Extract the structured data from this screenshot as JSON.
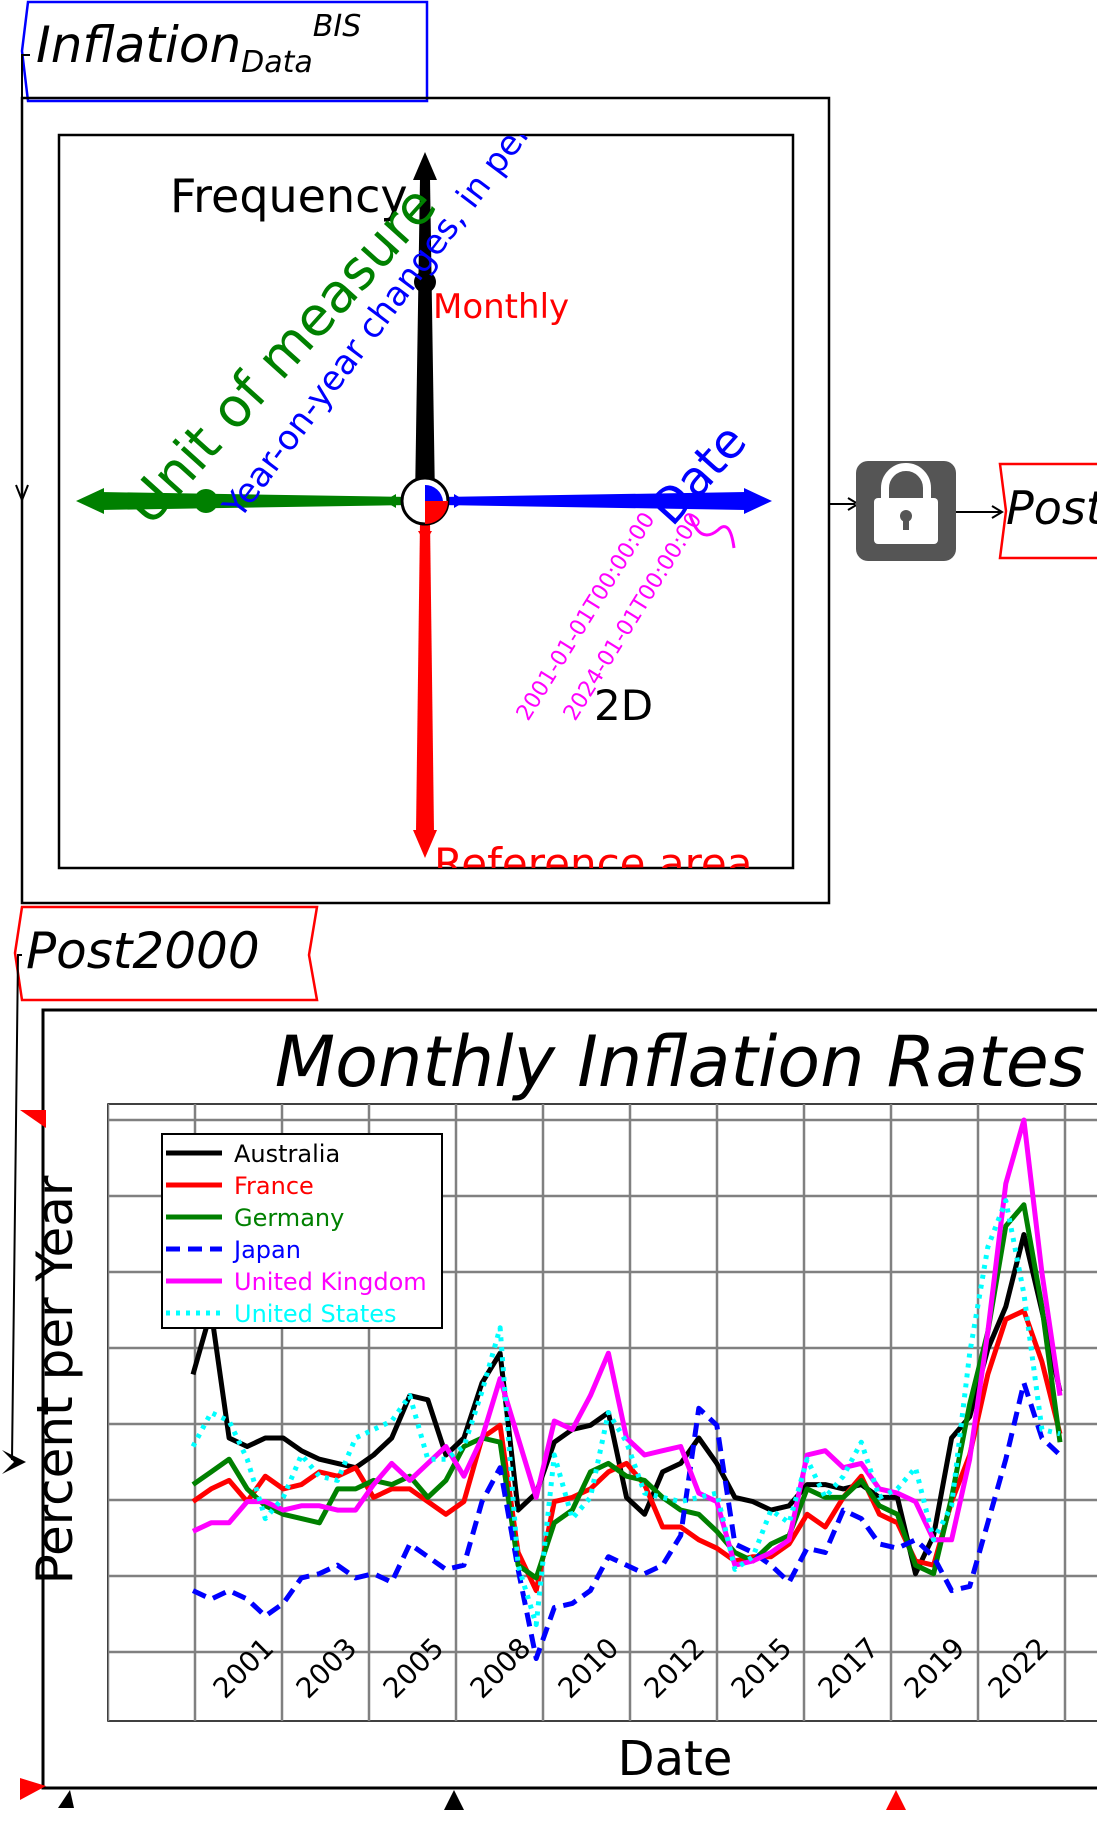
{
  "dataset_title": {
    "base": "Inflation",
    "sub": "Data",
    "sup": "BIS"
  },
  "dims": {
    "frequency": {
      "label": "Frequency",
      "value": "Monthly"
    },
    "unit_of_measure": {
      "label": "Unit of measure",
      "value": "Year-on-year changes, in per cent"
    },
    "date": {
      "label": "Date",
      "start": "2001-01-01T00:00:00",
      "end": "2024-01-01T00:00:00"
    },
    "reference_area": {
      "label": "Reference area"
    }
  },
  "dim_badge": "2D",
  "lock": {
    "icon": "lock-icon"
  },
  "output_tag_partial": "Post",
  "subset_tag": "Post2000",
  "colors": {
    "black": "#000000",
    "red": "#ff0000",
    "green": "#008000",
    "blue": "#0000ff",
    "magenta": "#ff00ff",
    "cyan": "#00ffff",
    "lock_bg": "#555555"
  },
  "chart_data": {
    "type": "line",
    "title": "Monthly Inflation Rates",
    "xlabel": "Date",
    "ylabel": "Percent per Year",
    "x_ticks": [
      "2001",
      "2003",
      "2005",
      "2008",
      "2010",
      "2012",
      "2015",
      "2017",
      "2019",
      "2022"
    ],
    "x_start": 2000.0,
    "x_end": 2024.0,
    "ylim": [
      -2,
      10.5
    ],
    "grid": true,
    "legend_position": "top-left",
    "series": [
      {
        "name": "Australia",
        "color": "#000000",
        "dash": "solid",
        "x": [
          2000.0,
          2000.5,
          2001.0,
          2001.5,
          2002.0,
          2002.5,
          2003.0,
          2003.5,
          2004.0,
          2004.5,
          2005.0,
          2005.5,
          2006.0,
          2006.5,
          2007.0,
          2007.5,
          2008.0,
          2008.5,
          2009.0,
          2009.5,
          2010.0,
          2010.5,
          2011.0,
          2011.5,
          2012.0,
          2012.5,
          2013.0,
          2013.5,
          2014.0,
          2014.5,
          2015.0,
          2015.5,
          2016.0,
          2016.5,
          2017.0,
          2017.5,
          2018.0,
          2018.5,
          2019.0,
          2019.5,
          2020.0,
          2020.5,
          2021.0,
          2021.5,
          2022.0,
          2022.5,
          2023.0,
          2023.5,
          2024.0
        ],
        "y": [
          4.5,
          6.0,
          3.0,
          2.8,
          3.0,
          3.0,
          2.7,
          2.5,
          2.4,
          2.3,
          2.6,
          3.0,
          4.0,
          3.9,
          2.6,
          3.0,
          4.3,
          5.0,
          1.3,
          1.7,
          2.9,
          3.2,
          3.3,
          3.6,
          1.6,
          1.2,
          2.2,
          2.4,
          3.0,
          2.4,
          1.6,
          1.5,
          1.3,
          1.4,
          1.9,
          1.9,
          1.8,
          1.9,
          1.6,
          1.6,
          -0.2,
          0.7,
          3.0,
          3.5,
          5.1,
          6.1,
          7.8,
          6.0,
          4.1
        ]
      },
      {
        "name": "France",
        "color": "#ff0000",
        "dash": "solid",
        "x": [
          2000.0,
          2000.5,
          2001.0,
          2001.5,
          2002.0,
          2002.5,
          2003.0,
          2003.5,
          2004.0,
          2004.5,
          2005.0,
          2005.5,
          2006.0,
          2006.5,
          2007.0,
          2007.5,
          2008.0,
          2008.5,
          2009.0,
          2009.5,
          2010.0,
          2010.5,
          2011.0,
          2011.5,
          2012.0,
          2012.5,
          2013.0,
          2013.5,
          2014.0,
          2014.5,
          2015.0,
          2015.5,
          2016.0,
          2016.5,
          2017.0,
          2017.5,
          2018.0,
          2018.5,
          2019.0,
          2019.5,
          2020.0,
          2020.5,
          2021.0,
          2021.5,
          2022.0,
          2022.5,
          2023.0,
          2023.5,
          2024.0
        ],
        "y": [
          1.5,
          1.8,
          2.0,
          1.5,
          2.1,
          1.8,
          1.9,
          2.2,
          2.1,
          2.3,
          1.6,
          1.8,
          1.8,
          1.5,
          1.2,
          1.5,
          3.0,
          3.3,
          0.3,
          -0.6,
          1.5,
          1.6,
          1.8,
          2.2,
          2.4,
          1.9,
          0.9,
          0.9,
          0.6,
          0.4,
          0.1,
          0.2,
          0.2,
          0.5,
          1.2,
          0.9,
          1.6,
          2.1,
          1.2,
          1.0,
          0.1,
          0.0,
          1.5,
          2.6,
          4.5,
          5.8,
          6.0,
          4.8,
          3.1
        ]
      },
      {
        "name": "Germany",
        "color": "#008000",
        "dash": "solid",
        "x": [
          2000.0,
          2000.5,
          2001.0,
          2001.5,
          2002.0,
          2002.5,
          2003.0,
          2003.5,
          2004.0,
          2004.5,
          2005.0,
          2005.5,
          2006.0,
          2006.5,
          2007.0,
          2007.5,
          2008.0,
          2008.5,
          2009.0,
          2009.5,
          2010.0,
          2010.5,
          2011.0,
          2011.5,
          2012.0,
          2012.5,
          2013.0,
          2013.5,
          2014.0,
          2014.5,
          2015.0,
          2015.5,
          2016.0,
          2016.5,
          2017.0,
          2017.5,
          2018.0,
          2018.5,
          2019.0,
          2019.5,
          2020.0,
          2020.5,
          2021.0,
          2021.5,
          2022.0,
          2022.5,
          2023.0,
          2023.5,
          2024.0
        ],
        "y": [
          1.9,
          2.2,
          2.5,
          1.8,
          1.4,
          1.2,
          1.1,
          1.0,
          1.8,
          1.8,
          2.0,
          1.9,
          2.1,
          1.6,
          2.0,
          2.8,
          3.0,
          2.9,
          0.0,
          -0.3,
          1.0,
          1.3,
          2.2,
          2.4,
          2.1,
          2.0,
          1.6,
          1.3,
          1.2,
          0.8,
          0.3,
          0.1,
          0.5,
          0.7,
          1.8,
          1.6,
          1.6,
          2.0,
          1.4,
          1.2,
          0.0,
          -0.2,
          1.6,
          3.8,
          5.5,
          8.0,
          8.5,
          6.1,
          2.9
        ]
      },
      {
        "name": "Japan",
        "color": "#0000ff",
        "dash": "dashed",
        "x": [
          2000.0,
          2000.5,
          2001.0,
          2001.5,
          2002.0,
          2002.5,
          2003.0,
          2003.5,
          2004.0,
          2004.5,
          2005.0,
          2005.5,
          2006.0,
          2006.5,
          2007.0,
          2007.5,
          2008.0,
          2008.5,
          2009.0,
          2009.5,
          2010.0,
          2010.5,
          2011.0,
          2011.5,
          2012.0,
          2012.5,
          2013.0,
          2013.5,
          2014.0,
          2014.5,
          2015.0,
          2015.5,
          2016.0,
          2016.5,
          2017.0,
          2017.5,
          2018.0,
          2018.5,
          2019.0,
          2019.5,
          2020.0,
          2020.5,
          2021.0,
          2021.5,
          2022.0,
          2022.5,
          2023.0,
          2023.5,
          2024.0
        ],
        "y": [
          -0.6,
          -0.8,
          -0.6,
          -0.8,
          -1.2,
          -0.9,
          -0.3,
          -0.2,
          0.0,
          -0.3,
          -0.2,
          -0.4,
          0.5,
          0.2,
          -0.1,
          0.0,
          1.5,
          2.3,
          -0.1,
          -2.2,
          -1.0,
          -0.9,
          -0.6,
          0.2,
          0.0,
          -0.2,
          0.0,
          0.7,
          3.7,
          3.3,
          0.5,
          0.3,
          0.0,
          -0.4,
          0.4,
          0.3,
          1.3,
          1.1,
          0.5,
          0.4,
          0.6,
          0.2,
          -0.6,
          -0.5,
          1.0,
          2.5,
          4.3,
          3.0,
          2.6
        ]
      },
      {
        "name": "United Kingdom",
        "color": "#ff00ff",
        "dash": "solid",
        "x": [
          2000.0,
          2000.5,
          2001.0,
          2001.5,
          2002.0,
          2002.5,
          2003.0,
          2003.5,
          2004.0,
          2004.5,
          2005.0,
          2005.5,
          2006.0,
          2006.5,
          2007.0,
          2007.5,
          2008.0,
          2008.5,
          2009.0,
          2009.5,
          2010.0,
          2010.5,
          2011.0,
          2011.5,
          2012.0,
          2012.5,
          2013.0,
          2013.5,
          2014.0,
          2014.5,
          2015.0,
          2015.5,
          2016.0,
          2016.5,
          2017.0,
          2017.5,
          2018.0,
          2018.5,
          2019.0,
          2019.5,
          2020.0,
          2020.5,
          2021.0,
          2021.5,
          2022.0,
          2022.5,
          2023.0,
          2023.5,
          2024.0
        ],
        "y": [
          0.8,
          1.0,
          1.0,
          1.5,
          1.5,
          1.3,
          1.4,
          1.4,
          1.3,
          1.3,
          1.9,
          2.4,
          2.0,
          2.4,
          2.8,
          2.1,
          3.0,
          4.4,
          3.0,
          1.6,
          3.4,
          3.2,
          4.0,
          5.0,
          3.0,
          2.6,
          2.7,
          2.8,
          1.7,
          1.5,
          0.0,
          0.1,
          0.3,
          0.6,
          2.6,
          2.7,
          2.3,
          2.4,
          1.8,
          1.7,
          1.5,
          0.6,
          0.6,
          2.5,
          5.5,
          9.0,
          10.5,
          6.9,
          4.0
        ]
      },
      {
        "name": "United States",
        "color": "#00ffff",
        "dash": "dotted",
        "x": [
          2000.0,
          2000.5,
          2001.0,
          2001.5,
          2002.0,
          2002.5,
          2003.0,
          2003.5,
          2004.0,
          2004.5,
          2005.0,
          2005.5,
          2006.0,
          2006.5,
          2007.0,
          2007.5,
          2008.0,
          2008.5,
          2009.0,
          2009.5,
          2010.0,
          2010.5,
          2011.0,
          2011.5,
          2012.0,
          2012.5,
          2013.0,
          2013.5,
          2014.0,
          2014.5,
          2015.0,
          2015.5,
          2016.0,
          2016.5,
          2017.0,
          2017.5,
          2018.0,
          2018.5,
          2019.0,
          2019.5,
          2020.0,
          2020.5,
          2021.0,
          2021.5,
          2022.0,
          2022.5,
          2023.0,
          2023.5,
          2024.0
        ],
        "y": [
          2.8,
          3.6,
          3.4,
          2.5,
          1.1,
          1.6,
          2.6,
          2.1,
          2.0,
          3.0,
          3.2,
          3.4,
          4.0,
          2.5,
          2.5,
          2.8,
          4.1,
          5.6,
          0.0,
          -1.4,
          2.6,
          1.1,
          1.6,
          3.6,
          2.9,
          1.7,
          1.6,
          1.5,
          1.6,
          1.7,
          -0.1,
          0.2,
          1.3,
          1.0,
          2.5,
          1.6,
          2.1,
          2.9,
          1.6,
          1.8,
          2.3,
          0.6,
          1.4,
          5.0,
          7.5,
          8.6,
          6.4,
          3.2,
          3.1
        ]
      }
    ]
  }
}
